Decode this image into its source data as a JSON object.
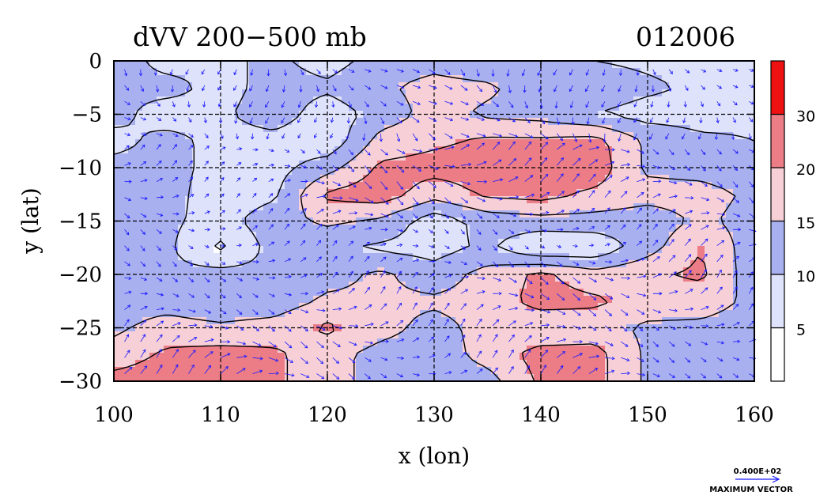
{
  "chart_data": {
    "type": "heatmap",
    "title": "dVV 200−500 mb",
    "date_label": "012006",
    "xlabel": "x (lon)",
    "ylabel": "y (lat)",
    "xlim": [
      100,
      160
    ],
    "ylim": [
      -30,
      0
    ],
    "x_ticks": [
      100,
      110,
      120,
      130,
      140,
      150,
      160
    ],
    "y_ticks": [
      0,
      -5,
      -10,
      -15,
      -20,
      -25,
      -30
    ],
    "x_tick_labels": [
      "100",
      "110",
      "120",
      "130",
      "140",
      "150",
      "160"
    ],
    "y_tick_labels": [
      "0",
      "−5",
      "−10",
      "−15",
      "−20",
      "−25",
      "−30"
    ],
    "grid": true,
    "grid_style": "dashed",
    "colorbar": {
      "labels": [
        "5",
        "10",
        "15",
        "20",
        "30"
      ],
      "bins": [
        {
          "lower": 0,
          "upper": 5,
          "color": "#ffffff"
        },
        {
          "lower": 5,
          "upper": 10,
          "color": "#dfe2fb"
        },
        {
          "lower": 10,
          "upper": 15,
          "color": "#a9b0f0"
        },
        {
          "lower": 15,
          "upper": 20,
          "color": "#f7cfd6"
        },
        {
          "lower": 20,
          "upper": 30,
          "color": "#ec7d87"
        },
        {
          "lower": 30,
          "upper": 40,
          "color": "#ee1111"
        }
      ]
    },
    "vector_color": "#1a1aff",
    "vector_legend": {
      "value": "0.400E+02",
      "label": "MAXIMUM VECTOR"
    },
    "field_estimate": {
      "lon": [
        100,
        105,
        110,
        115,
        120,
        125,
        130,
        135,
        140,
        145,
        150,
        155,
        160
      ],
      "lat": [
        0,
        -2.5,
        -5,
        -7.5,
        -10,
        -12.5,
        -15,
        -17.5,
        -20,
        -22.5,
        -25,
        -27.5,
        -30
      ],
      "values": [
        [
          13,
          8,
          9,
          11,
          8,
          12,
          13,
          11,
          12,
          10,
          9,
          8,
          7
        ],
        [
          11,
          12,
          8,
          12,
          11,
          14,
          17,
          16,
          12,
          13,
          11,
          9,
          7
        ],
        [
          12,
          7,
          9,
          13,
          7,
          12,
          17,
          14,
          13,
          10,
          8,
          8,
          9
        ],
        [
          8,
          12,
          8,
          8,
          6,
          17,
          19,
          21,
          21,
          22,
          14,
          11,
          10
        ],
        [
          12,
          12,
          8,
          8,
          13,
          21,
          22,
          22,
          21,
          23,
          14,
          13,
          11
        ],
        [
          13,
          12,
          7,
          9,
          21,
          23,
          17,
          21,
          22,
          19,
          17,
          17,
          14
        ],
        [
          12,
          11,
          8,
          13,
          16,
          14,
          7,
          12,
          13,
          13,
          12,
          16,
          13
        ],
        [
          13,
          11,
          4,
          12,
          11,
          9,
          8,
          11,
          5,
          6,
          13,
          20,
          12
        ],
        [
          12,
          11,
          12,
          11,
          13,
          16,
          12,
          17,
          21,
          17,
          19,
          21,
          12
        ],
        [
          13,
          13,
          11,
          12,
          16,
          16,
          16,
          17,
          22,
          21,
          18,
          17,
          14
        ],
        [
          14,
          17,
          16,
          17,
          21,
          17,
          13,
          17,
          16,
          17,
          14,
          14,
          13
        ],
        [
          17,
          21,
          22,
          21,
          17,
          13,
          12,
          17,
          22,
          22,
          14,
          12,
          12
        ],
        [
          22,
          23,
          22,
          21,
          17,
          13,
          12,
          13,
          21,
          22,
          14,
          11,
          11
        ]
      ]
    }
  }
}
